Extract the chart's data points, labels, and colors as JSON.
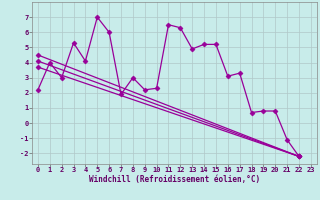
{
  "title": "",
  "xlabel": "Windchill (Refroidissement éolien,°C)",
  "ylabel": "",
  "xlim": [
    -0.5,
    23.5
  ],
  "ylim": [
    -2.7,
    8.0
  ],
  "xticks": [
    0,
    1,
    2,
    3,
    4,
    5,
    6,
    7,
    8,
    9,
    10,
    11,
    12,
    13,
    14,
    15,
    16,
    17,
    18,
    19,
    20,
    21,
    22,
    23
  ],
  "yticks": [
    -2,
    -1,
    0,
    1,
    2,
    3,
    4,
    5,
    6,
    7
  ],
  "bg_color": "#c8ecea",
  "line_color": "#990099",
  "grid_color": "#b0c8c8",
  "series1_x": [
    0,
    1,
    2,
    3,
    4,
    5,
    6,
    7,
    8,
    9,
    10,
    11,
    12,
    13,
    14,
    15,
    16,
    17,
    18,
    19,
    20,
    21,
    22
  ],
  "series1_y": [
    2.2,
    4.0,
    3.0,
    5.3,
    4.1,
    7.0,
    6.0,
    1.9,
    3.0,
    2.2,
    2.3,
    6.5,
    6.3,
    4.9,
    5.2,
    5.2,
    3.1,
    3.3,
    0.7,
    0.8,
    0.8,
    -1.1,
    -2.2
  ],
  "series2_x": [
    0,
    22
  ],
  "series2_y": [
    4.5,
    -2.2
  ],
  "series3_x": [
    0,
    22
  ],
  "series3_y": [
    4.1,
    -2.2
  ],
  "series4_x": [
    0,
    22
  ],
  "series4_y": [
    3.7,
    -2.2
  ],
  "marker": "D",
  "marker_size": 2.5,
  "line_width": 0.9
}
